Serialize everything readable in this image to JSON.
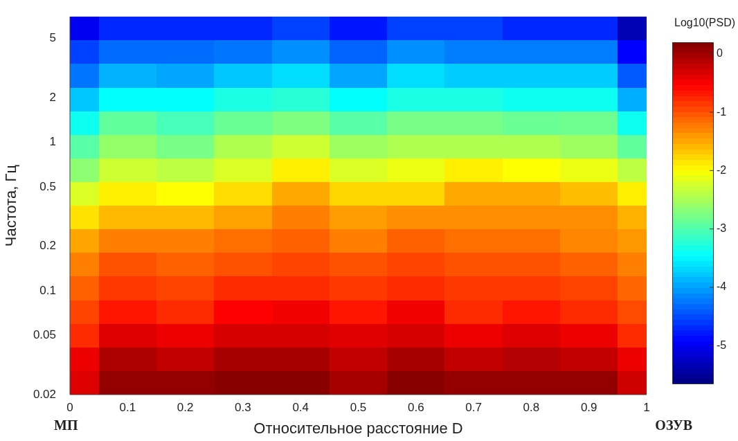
{
  "chart_data": {
    "type": "heatmap",
    "xlabel": "Относительное расстояние D",
    "ylabel": "Частота, Гц",
    "clabel": "Log10(PSD)",
    "categories": [
      "0",
      "0.1",
      "0.2",
      "0.3",
      "0.4",
      "0.5",
      "0.6",
      "0.7",
      "0.8",
      "0.9",
      "1"
    ],
    "ylim": [
      0.02,
      7
    ],
    "yticks": [
      0.02,
      0.05,
      0.1,
      0.2,
      0.5,
      1,
      2,
      5
    ],
    "log": "y",
    "clim": [
      -5.65,
      0.2
    ],
    "cticks": [
      -5,
      -4,
      -3,
      -2,
      -1,
      0
    ],
    "cells": [
      [
        -5.0,
        -4.7,
        -4.7,
        -4.7,
        -4.55,
        -4.8,
        -4.55,
        -4.55,
        -4.7,
        -4.7,
        -5.35
      ],
      [
        -4.55,
        -4.3,
        -4.3,
        -4.25,
        -4.1,
        -4.35,
        -4.1,
        -4.2,
        -4.2,
        -4.2,
        -4.92
      ],
      [
        -4.25,
        -3.9,
        -3.97,
        -3.78,
        -3.65,
        -3.97,
        -3.65,
        -3.75,
        -3.75,
        -3.75,
        -4.4
      ],
      [
        -3.78,
        -3.45,
        -3.45,
        -3.3,
        -3.22,
        -3.45,
        -3.3,
        -3.3,
        -3.38,
        -3.38,
        -3.92
      ],
      [
        -3.38,
        -2.9,
        -3.05,
        -2.85,
        -2.73,
        -2.95,
        -2.77,
        -2.77,
        -2.85,
        -2.82,
        -3.38
      ],
      [
        -2.95,
        -2.6,
        -2.77,
        -2.45,
        -2.28,
        -2.55,
        -2.45,
        -2.45,
        -2.45,
        -2.55,
        -2.9
      ],
      [
        -2.65,
        -2.28,
        -2.37,
        -2.2,
        -1.9,
        -2.2,
        -2.1,
        -1.9,
        -2.0,
        -2.1,
        -2.37
      ],
      [
        -2.2,
        -1.9,
        -2.0,
        -1.8,
        -1.5,
        -1.76,
        -1.76,
        -1.5,
        -1.5,
        -1.62,
        -1.9
      ],
      [
        -1.83,
        -1.6,
        -1.6,
        -1.46,
        -1.26,
        -1.44,
        -1.35,
        -1.35,
        -1.35,
        -1.35,
        -1.56
      ],
      [
        -1.48,
        -1.26,
        -1.26,
        -1.17,
        -1.09,
        -1.26,
        -1.09,
        -1.17,
        -1.17,
        -1.3,
        -1.4
      ],
      [
        -1.26,
        -1.0,
        -1.09,
        -1.0,
        -0.92,
        -1.0,
        -0.92,
        -1.0,
        -1.0,
        -1.09,
        -1.26
      ],
      [
        -1.09,
        -0.85,
        -0.92,
        -0.78,
        -0.78,
        -0.85,
        -0.78,
        -0.85,
        -0.85,
        -0.92,
        -1.13
      ],
      [
        -0.92,
        -0.65,
        -0.78,
        -0.53,
        -0.46,
        -0.65,
        -0.46,
        -0.78,
        -0.65,
        -0.78,
        -0.96
      ],
      [
        -0.78,
        -0.33,
        -0.42,
        -0.3,
        -0.3,
        -0.36,
        -0.3,
        -0.42,
        -0.33,
        -0.42,
        -0.78
      ],
      [
        -0.42,
        -0.06,
        -0.18,
        -0.02,
        -0.02,
        -0.18,
        -0.02,
        -0.18,
        -0.1,
        -0.18,
        -0.42
      ],
      [
        -0.33,
        0.08,
        0.08,
        0.15,
        0.15,
        -0.02,
        0.15,
        0.08,
        0.08,
        0.08,
        -0.25
      ]
    ],
    "annotations": [
      "МП",
      "ОЗУВ"
    ]
  }
}
